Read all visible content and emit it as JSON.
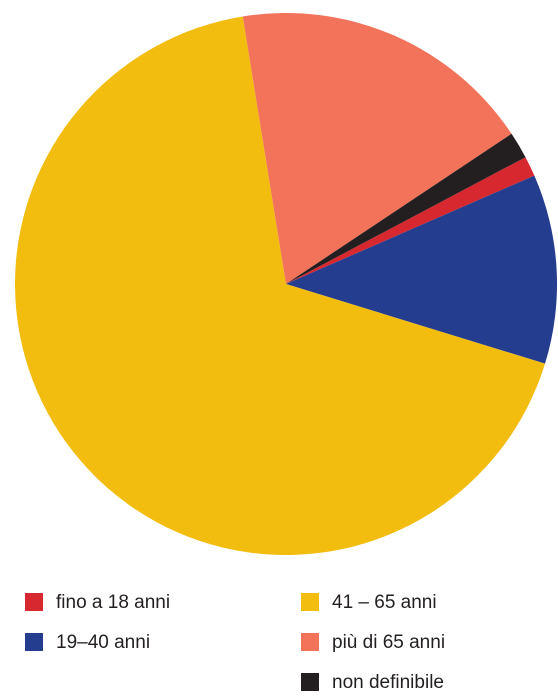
{
  "chart_data": {
    "type": "pie",
    "categories": [
      "fino a 18 anni",
      "19–40 anni",
      "41 – 65 anni",
      "più di 65 anni",
      "non definibile"
    ],
    "values": [
      1.2,
      11.3,
      67.7,
      18.2,
      1.6
    ],
    "colors": [
      "#d7282f",
      "#253d8f",
      "#f2bd0f",
      "#f2735a",
      "#231f20"
    ]
  }
}
